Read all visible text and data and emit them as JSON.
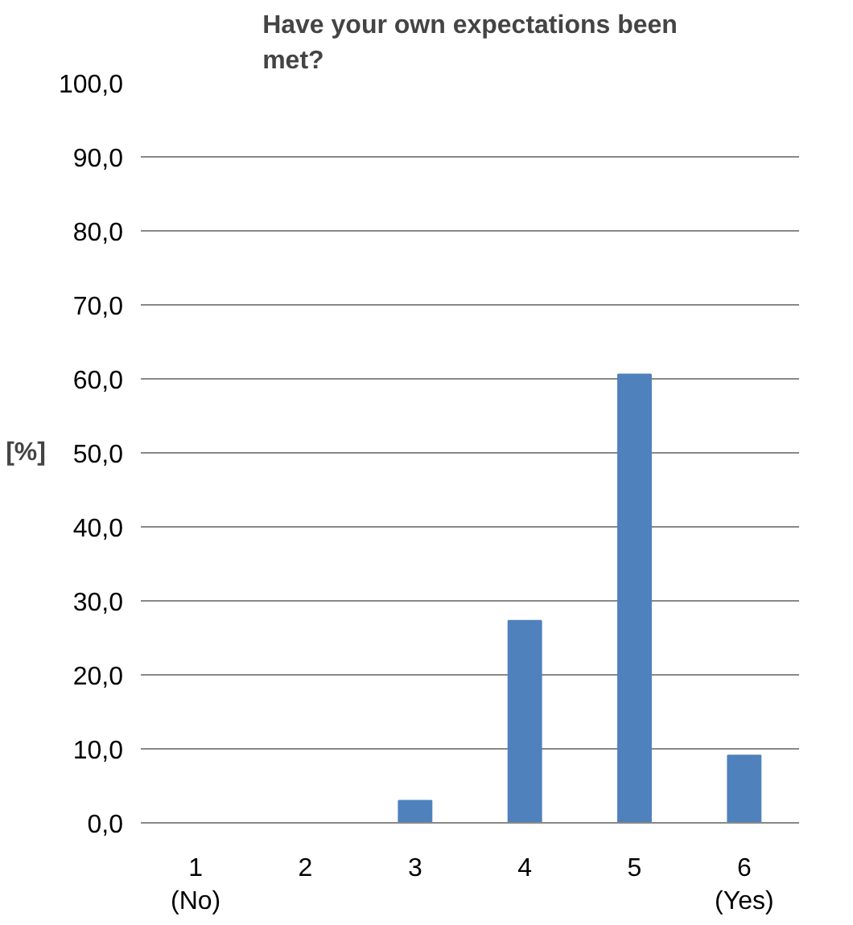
{
  "chart_data": {
    "type": "bar",
    "title": "Have your own expectations been\nmet?",
    "ylabel": "[%]",
    "categories": [
      "1\n(No)",
      "2",
      "3",
      "4",
      "5",
      "6\n(Yes)"
    ],
    "values": [
      0,
      0,
      3.0,
      27.3,
      60.6,
      9.1
    ],
    "color": "#4f81bd",
    "ylim": [
      0,
      100
    ],
    "yticks": [
      {
        "value": 0,
        "label": "0,0"
      },
      {
        "value": 10,
        "label": "10,0"
      },
      {
        "value": 20,
        "label": "20,0"
      },
      {
        "value": 30,
        "label": "30,0"
      },
      {
        "value": 40,
        "label": "40,0"
      },
      {
        "value": 50,
        "label": "50,0"
      },
      {
        "value": 60,
        "label": "60,0"
      },
      {
        "value": 70,
        "label": "70,0"
      },
      {
        "value": 80,
        "label": "80,0"
      },
      {
        "value": 90,
        "label": "90,0"
      },
      {
        "value": 100,
        "label": "100,0"
      }
    ],
    "grid": "y"
  }
}
